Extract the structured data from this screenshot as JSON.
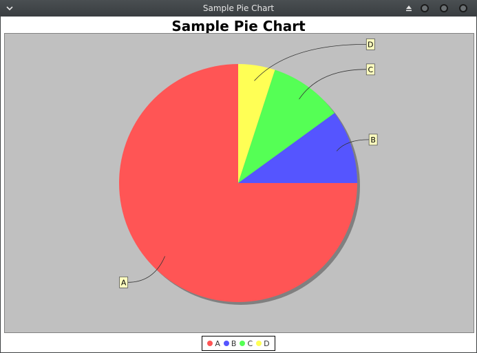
{
  "window": {
    "title": "Sample Pie Chart",
    "menu_icon": "chevron-down-icon",
    "buttons": [
      "eject-icon",
      "minimize-icon",
      "maximize-icon",
      "close-icon"
    ]
  },
  "chart_data": {
    "type": "pie",
    "title": "Sample Pie Chart",
    "start_angle_deg": 90,
    "direction": "anticlockwise",
    "slices": [
      {
        "label": "A",
        "value": 75,
        "color": "#ff5555"
      },
      {
        "label": "B",
        "value": 10,
        "color": "#5555ff"
      },
      {
        "label": "C",
        "value": 10,
        "color": "#55ff55"
      },
      {
        "label": "D",
        "value": 5,
        "color": "#ffff55"
      }
    ],
    "plot_background": "#c0c0c0",
    "label_box_color": "#ffffc0",
    "legend_position": "bottom"
  }
}
